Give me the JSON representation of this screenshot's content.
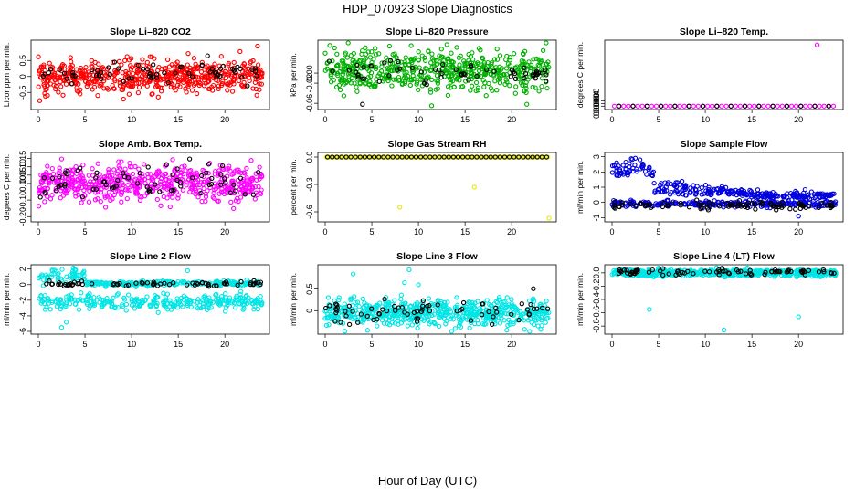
{
  "figure": {
    "title": "HDP_070923  Slope Diagnostics",
    "xlabel": "Hour of Day (UTC)"
  },
  "chart_data": [
    {
      "type": "scatter",
      "title": "Slope Li–820 CO2",
      "xlabel": "",
      "ylabel": "Licor ppm per min.",
      "xlim": [
        0,
        24
      ],
      "ylim": [
        -0.95,
        1.05
      ],
      "xticks": [
        0,
        5,
        10,
        15,
        20
      ],
      "yticks": [
        -0.5,
        0,
        0.5
      ],
      "yticklabels": [
        "-0.5",
        "0",
        "0.5"
      ],
      "series": [
        {
          "color": "#ff0000",
          "n": 560,
          "mean": 0,
          "sd": 0.26,
          "seed": 11,
          "x": [
            23.5
          ],
          "y": [
            0.95
          ]
        },
        {
          "color": "#000000",
          "n": 65,
          "mean": 0.08,
          "sd": 0.15,
          "seed": 12
        }
      ]
    },
    {
      "type": "scatter",
      "title": "Slope Li–820 Pressure",
      "xlabel": "",
      "ylabel": "kPa per min.",
      "xlim": [
        0,
        24
      ],
      "ylim": [
        -0.067,
        0.06
      ],
      "xticks": [
        0,
        5,
        10,
        15,
        20
      ],
      "yticks": [
        -0.06,
        -0.02,
        0.0
      ],
      "yticklabels": [
        "-0.06",
        "-0.02",
        "0.00"
      ],
      "series": [
        {
          "color": "#00b000",
          "n": 560,
          "mean": 0.005,
          "sd": 0.02,
          "seed": 21,
          "x": [
            0.5,
            1.0,
            2.0,
            23.8
          ],
          "y": [
            0.055,
            0.05,
            -0.045,
            -0.03
          ]
        },
        {
          "color": "#000000",
          "n": 60,
          "mean": 0.0,
          "sd": 0.01,
          "seed": 22,
          "x": [
            4.0
          ],
          "y": [
            -0.062
          ]
        }
      ]
    },
    {
      "type": "scatter",
      "title": "Slope Li–820 Temp.",
      "xlabel": "",
      "ylabel": "degrees C per min.",
      "xlim": [
        0,
        24
      ],
      "ylim": [
        -0.0001,
        0.0095
      ],
      "xticks": [
        0,
        5,
        10,
        15,
        20
      ],
      "yticks": [
        0,
        0.0004,
        0.0008
      ],
      "yticklabels": [
        "0.0000",
        "0.0004",
        "0.0008"
      ],
      "series": [
        {
          "color": "#ff00ff",
          "n": 48,
          "mean": 0,
          "sd": 0,
          "seed": 31,
          "grid": true,
          "x": [
            22.0
          ],
          "y": [
            0.0092
          ]
        },
        {
          "color": "#000000",
          "n": 16,
          "mean": 0,
          "sd": 0,
          "seed": 32,
          "grid": true
        }
      ]
    },
    {
      "type": "scatter",
      "title": "Slope Amb. Box Temp.",
      "xlabel": "",
      "ylabel": "degrees C per min.",
      "xlim": [
        0,
        24
      ],
      "ylim": [
        -0.215,
        0.17
      ],
      "xticks": [
        0,
        5,
        10,
        15,
        20
      ],
      "yticks": [
        -0.2,
        -0.1,
        0.0,
        0.05,
        0.1,
        0.15
      ],
      "yticklabels": [
        "-0.20",
        "-0.10",
        "0.00",
        "0.05",
        "0.10",
        "0.15"
      ],
      "series": [
        {
          "color": "#ff00ff",
          "n": 560,
          "mean": 0,
          "sd": 0.055,
          "seed": 41
        },
        {
          "color": "#000000",
          "n": 70,
          "mean": 0,
          "sd": 0.05,
          "seed": 42
        }
      ]
    },
    {
      "type": "scatter",
      "title": "Slope Gas Stream RH",
      "xlabel": "",
      "ylabel": "percent per min.",
      "xlim": [
        0,
        24
      ],
      "ylim": [
        -0.68,
        0.02
      ],
      "xticks": [
        0,
        5,
        10,
        15,
        20
      ],
      "yticks": [
        -0.6,
        -0.3,
        0.0
      ],
      "yticklabels": [
        "-0.6",
        "-0.3",
        "0.0"
      ],
      "series": [
        {
          "color": "#e8e800",
          "n": 96,
          "mean": 0,
          "sd": 0,
          "seed": 51,
          "grid": true,
          "x": [
            8.0,
            16.0,
            24.0
          ],
          "y": [
            -0.55,
            -0.33,
            -0.67
          ]
        },
        {
          "color": "#000000",
          "n": 48,
          "mean": 0,
          "sd": 0,
          "seed": 52,
          "grid": true
        }
      ]
    },
    {
      "type": "scatter",
      "title": "Slope Sample Flow",
      "xlabel": "",
      "ylabel": "ml/min per min.",
      "xlim": [
        0,
        24
      ],
      "ylim": [
        -1.1,
        3.1
      ],
      "xticks": [
        0,
        5,
        10,
        15,
        20
      ],
      "yticks": [
        -1,
        0,
        1,
        2,
        3
      ],
      "yticklabels": [
        "-1",
        "0",
        "1",
        "2",
        "3"
      ],
      "series": [
        {
          "color": "#0000dd",
          "n": 300,
          "mean": 0,
          "sd": 0.12,
          "seed": 61,
          "trend": "flow",
          "x": [
            0.5,
            1.0,
            2.5,
            3.0,
            4.0,
            20.0
          ],
          "y": [
            2.6,
            1.9,
            2.9,
            2.8,
            2.3,
            -0.9
          ]
        },
        {
          "color": "#0000dd",
          "n": 260,
          "mean": -0.1,
          "sd": 0.1,
          "seed": 62
        },
        {
          "color": "#000000",
          "n": 90,
          "mean": -0.2,
          "sd": 0.12,
          "seed": 63
        }
      ]
    },
    {
      "type": "scatter",
      "title": "Slope Line 2 Flow",
      "xlabel": "",
      "ylabel": "ml/min per min.",
      "xlim": [
        0,
        24
      ],
      "ylim": [
        -6.0,
        2.2
      ],
      "xticks": [
        0,
        5,
        10,
        15,
        20
      ],
      "yticks": [
        -6,
        -4,
        -2,
        0,
        2
      ],
      "yticklabels": [
        "-6",
        "-4",
        "-2",
        "0",
        "2"
      ],
      "series": [
        {
          "color": "#00e5e5",
          "n": 280,
          "mean": 1.0,
          "sd": 0.35,
          "seed": 71,
          "trend": "upper",
          "x": [
            4.0,
            16.0
          ],
          "y": [
            1.9,
            1.8
          ]
        },
        {
          "color": "#00e5e5",
          "n": 300,
          "mean": -2.2,
          "sd": 0.5,
          "seed": 72,
          "x": [
            2.5,
            3.0
          ],
          "y": [
            -5.5,
            -4.8
          ]
        },
        {
          "color": "#000000",
          "n": 70,
          "mean": 0.1,
          "sd": 0.15,
          "seed": 73
        }
      ]
    },
    {
      "type": "scatter",
      "title": "Slope Line 3 Flow",
      "xlabel": "",
      "ylabel": "ml/min per min.",
      "xlim": [
        0,
        24
      ],
      "ylim": [
        -0.48,
        1.0
      ],
      "xticks": [
        0,
        5,
        10,
        15,
        20
      ],
      "yticks": [
        0,
        0.5
      ],
      "yticklabels": [
        "0",
        "0.5"
      ],
      "series": [
        {
          "color": "#00e5e5",
          "n": 600,
          "mean": -0.05,
          "sd": 0.15,
          "seed": 81,
          "x": [
            3.0,
            9.0,
            10.0,
            8.5
          ],
          "y": [
            0.85,
            0.95,
            0.6,
            0.65
          ]
        },
        {
          "color": "#000000",
          "n": 70,
          "mean": 0.0,
          "sd": 0.16,
          "seed": 82
        }
      ]
    },
    {
      "type": "scatter",
      "title": "Slope Line 4 (LT) Flow",
      "xlabel": "",
      "ylabel": "ml/min per min.",
      "xlim": [
        0,
        24
      ],
      "ylim": [
        -0.88,
        0.08
      ],
      "xticks": [
        0,
        5,
        10,
        15,
        20
      ],
      "yticks": [
        -0.8,
        -0.6,
        -0.4,
        -0.2,
        0.0
      ],
      "yticklabels": [
        "-0.8",
        "-0.6",
        "-0.4",
        "-0.2",
        "0.0"
      ],
      "series": [
        {
          "color": "#00e5e5",
          "n": 600,
          "mean": 0.0,
          "sd": 0.025,
          "seed": 91,
          "x": [
            4.0,
            12.0,
            20.0
          ],
          "y": [
            -0.55,
            -0.86,
            -0.66
          ]
        },
        {
          "color": "#000000",
          "n": 80,
          "mean": 0.01,
          "sd": 0.02,
          "seed": 92
        }
      ]
    }
  ]
}
